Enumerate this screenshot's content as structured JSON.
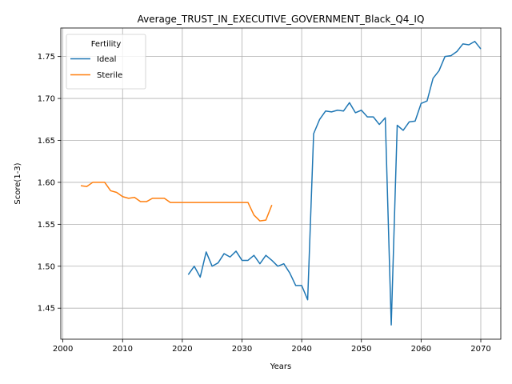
{
  "chart_data": {
    "type": "line",
    "title": "Average_TRUST_IN_EXECUTIVE_GOVERNMENT_Black_Q4_IQ",
    "xlabel": "Years",
    "ylabel": "Score(1-3)",
    "xlim": [
      1999.65,
      2073.35
    ],
    "ylim": [
      1.413,
      1.784
    ],
    "xticks": [
      2000,
      2010,
      2020,
      2030,
      2040,
      2050,
      2060,
      2070
    ],
    "xtick_labels": [
      "2000",
      "2010",
      "2020",
      "2030",
      "2040",
      "2050",
      "2060",
      "2070"
    ],
    "yticks": [
      1.45,
      1.5,
      1.55,
      1.6,
      1.65,
      1.7,
      1.75
    ],
    "ytick_labels": [
      "1.45",
      "1.50",
      "1.55",
      "1.60",
      "1.65",
      "1.70",
      "1.75"
    ],
    "grid": true,
    "legend": {
      "title": "Fertility",
      "position": "upper-left"
    },
    "series": [
      {
        "name": "Ideal",
        "color": "#1f77b4",
        "x": [
          2021,
          2022,
          2023,
          2024,
          2025,
          2026,
          2027,
          2028,
          2029,
          2030,
          2031,
          2032,
          2033,
          2034,
          2035,
          2036,
          2037,
          2038,
          2039,
          2040,
          2041,
          2042,
          2043,
          2044,
          2045,
          2046,
          2047,
          2048,
          2049,
          2050,
          2051,
          2052,
          2053,
          2054,
          2055,
          2056,
          2057,
          2058,
          2059,
          2060,
          2061,
          2062,
          2063,
          2064,
          2065,
          2066,
          2067,
          2068,
          2069,
          2070
        ],
        "y": [
          1.49,
          1.5,
          1.487,
          1.517,
          1.5,
          1.504,
          1.515,
          1.511,
          1.518,
          1.507,
          1.507,
          1.513,
          1.503,
          1.513,
          1.507,
          1.5,
          1.503,
          1.492,
          1.477,
          1.477,
          1.46,
          1.658,
          1.675,
          1.685,
          1.684,
          1.686,
          1.685,
          1.695,
          1.683,
          1.686,
          1.678,
          1.678,
          1.669,
          1.677,
          1.43,
          1.668,
          1.662,
          1.672,
          1.673,
          1.694,
          1.697,
          1.724,
          1.733,
          1.75,
          1.751,
          1.756,
          1.765,
          1.764,
          1.768,
          1.759
        ]
      },
      {
        "name": "Sterile",
        "color": "#ff7f0e",
        "x": [
          2003,
          2004,
          2005,
          2006,
          2007,
          2008,
          2009,
          2010,
          2011,
          2012,
          2013,
          2014,
          2015,
          2016,
          2017,
          2018,
          2019,
          2020,
          2021,
          2022,
          2023,
          2024,
          2025,
          2026,
          2027,
          2028,
          2029,
          2030,
          2031,
          2032,
          2033,
          2034,
          2035
        ],
        "y": [
          1.596,
          1.595,
          1.6,
          1.6,
          1.6,
          1.59,
          1.588,
          1.583,
          1.581,
          1.582,
          1.577,
          1.577,
          1.581,
          1.581,
          1.581,
          1.576,
          1.576,
          1.576,
          1.576,
          1.576,
          1.576,
          1.576,
          1.576,
          1.576,
          1.576,
          1.576,
          1.576,
          1.576,
          1.576,
          1.561,
          1.554,
          1.555,
          1.573
        ]
      }
    ]
  }
}
